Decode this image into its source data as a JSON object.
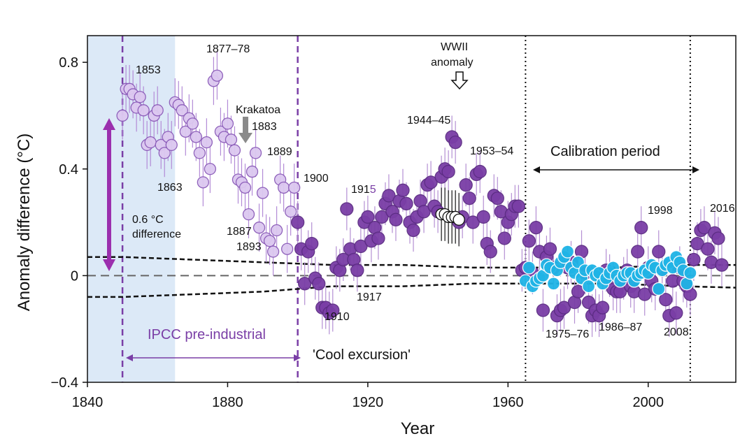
{
  "chart_data": {
    "type": "scatter",
    "xlabel": "Year",
    "ylabel": "Anomaly difference (°C)",
    "xlim": [
      1840,
      2025
    ],
    "ylim": [
      -0.4,
      0.9
    ],
    "x_ticks": [
      1840,
      1880,
      1920,
      1960,
      2000
    ],
    "y_ticks": [
      {
        "value": 0.8,
        "label": "0.8"
      },
      {
        "value": 0.4,
        "label": "0.4"
      },
      {
        "value": 0,
        "label": "0"
      },
      {
        "value": -0.4,
        "label": "−0.4"
      }
    ],
    "regions": {
      "shade": {
        "from": 1840,
        "to": 1865
      },
      "ipcc_lines": [
        1850,
        1900
      ],
      "calibration_lines": [
        1965,
        2012
      ]
    },
    "colors": {
      "light_purple": "#dcc8f0",
      "light_purple_edge": "#8a5ab8",
      "dark_purple": "#7a3ea6",
      "dark_purple_edge": "#5b2c82",
      "cyan": "#1fb4e6",
      "arrow_purple": "#9b2fae",
      "shade": "#dce9f7",
      "text_purple": "#7a3ea6"
    },
    "series": [
      {
        "name": "pre-1900",
        "style": "light_purple",
        "points": [
          [
            1850,
            0.6
          ],
          [
            1851,
            0.7
          ],
          [
            1852,
            0.7
          ],
          [
            1853,
            0.68
          ],
          [
            1854,
            0.63
          ],
          [
            1855,
            0.67
          ],
          [
            1856,
            0.62
          ],
          [
            1857,
            0.49
          ],
          [
            1858,
            0.5
          ],
          [
            1859,
            0.6
          ],
          [
            1860,
            0.62
          ],
          [
            1861,
            0.49
          ],
          [
            1862,
            0.46
          ],
          [
            1863,
            0.52
          ],
          [
            1864,
            0.49
          ],
          [
            1865,
            0.65
          ],
          [
            1866,
            0.64
          ],
          [
            1867,
            0.62
          ],
          [
            1868,
            0.54
          ],
          [
            1869,
            0.59
          ],
          [
            1870,
            0.57
          ],
          [
            1871,
            0.52
          ],
          [
            1872,
            0.46
          ],
          [
            1873,
            0.35
          ],
          [
            1874,
            0.5
          ],
          [
            1875,
            0.4
          ],
          [
            1876,
            0.73
          ],
          [
            1877,
            0.75
          ],
          [
            1878,
            0.54
          ],
          [
            1879,
            0.52
          ],
          [
            1880,
            0.57
          ],
          [
            1881,
            0.51
          ],
          [
            1882,
            0.47
          ],
          [
            1883,
            0.36
          ],
          [
            1884,
            0.35
          ],
          [
            1885,
            0.33
          ],
          [
            1886,
            0.23
          ],
          [
            1887,
            0.39
          ],
          [
            1888,
            0.46
          ],
          [
            1889,
            0.18
          ],
          [
            1890,
            0.31
          ],
          [
            1891,
            0.14
          ],
          [
            1892,
            0.13
          ],
          [
            1893,
            0.09
          ],
          [
            1894,
            0.17
          ],
          [
            1895,
            0.36
          ],
          [
            1896,
            0.33
          ],
          [
            1897,
            0.1
          ],
          [
            1898,
            0.24
          ],
          [
            1899,
            0.33
          ]
        ]
      },
      {
        "name": "1900-1964",
        "style": "dark_purple",
        "points": [
          [
            1900,
            0.2
          ],
          [
            1901,
            0.1
          ],
          [
            1902,
            -0.03
          ],
          [
            1903,
            0.09
          ],
          [
            1904,
            0.12
          ],
          [
            1905,
            -0.01
          ],
          [
            1906,
            -0.03
          ],
          [
            1907,
            -0.12
          ],
          [
            1908,
            -0.12
          ],
          [
            1909,
            -0.14
          ],
          [
            1910,
            -0.13
          ],
          [
            1911,
            0.03
          ],
          [
            1912,
            0.02
          ],
          [
            1913,
            0.06
          ],
          [
            1914,
            0.25
          ],
          [
            1915,
            0.1
          ],
          [
            1916,
            0.06
          ],
          [
            1917,
            0.02
          ],
          [
            1918,
            0.11
          ],
          [
            1919,
            0.2
          ],
          [
            1920,
            0.22
          ],
          [
            1921,
            0.13
          ],
          [
            1922,
            0.18
          ],
          [
            1923,
            0.14
          ],
          [
            1924,
            0.22
          ],
          [
            1925,
            0.27
          ],
          [
            1926,
            0.3
          ],
          [
            1927,
            0.24
          ],
          [
            1928,
            0.21
          ],
          [
            1929,
            0.28
          ],
          [
            1930,
            0.32
          ],
          [
            1931,
            0.27
          ],
          [
            1932,
            0.2
          ],
          [
            1933,
            0.17
          ],
          [
            1934,
            0.22
          ],
          [
            1935,
            0.28
          ],
          [
            1936,
            0.24
          ],
          [
            1937,
            0.34
          ],
          [
            1938,
            0.35
          ],
          [
            1939,
            0.26
          ],
          [
            1940,
            0.24
          ],
          [
            1941,
            0.37
          ],
          [
            1942,
            0.4
          ],
          [
            1943,
            0.39
          ],
          [
            1944,
            0.52
          ],
          [
            1945,
            0.5
          ],
          [
            1946,
            0.2
          ],
          [
            1947,
            0.22
          ],
          [
            1948,
            0.34
          ],
          [
            1949,
            0.29
          ],
          [
            1950,
            0.2
          ],
          [
            1951,
            0.38
          ],
          [
            1952,
            0.39
          ],
          [
            1953,
            0.22
          ],
          [
            1954,
            0.12
          ],
          [
            1955,
            0.09
          ],
          [
            1956,
            0.3
          ],
          [
            1957,
            0.29
          ],
          [
            1958,
            0.24
          ],
          [
            1959,
            0.14
          ],
          [
            1960,
            0.2
          ],
          [
            1961,
            0.23
          ],
          [
            1962,
            0.26
          ],
          [
            1963,
            0.26
          ],
          [
            1964,
            0.02
          ]
        ]
      },
      {
        "name": "1944-45 open",
        "style": "open_black",
        "points": [
          [
            1941,
            0.23
          ],
          [
            1942,
            0.23
          ],
          [
            1943,
            0.22
          ],
          [
            1944,
            0.22
          ],
          [
            1945,
            0.22
          ],
          [
            1946,
            0.21
          ]
        ]
      },
      {
        "name": "1965-2012 purple",
        "style": "dark_purple",
        "points": [
          [
            1965,
            0.03
          ],
          [
            1966,
            0.13
          ],
          [
            1967,
            0.01
          ],
          [
            1968,
            0.18
          ],
          [
            1969,
            0.09
          ],
          [
            1970,
            -0.13
          ],
          [
            1971,
            0.07
          ],
          [
            1972,
            0.1
          ],
          [
            1973,
            0.03
          ],
          [
            1974,
            -0.15
          ],
          [
            1975,
            -0.13
          ],
          [
            1976,
            -0.12
          ],
          [
            1977,
            0.03
          ],
          [
            1978,
            0.05
          ],
          [
            1979,
            -0.1
          ],
          [
            1980,
            -0.06
          ],
          [
            1981,
            0.09
          ],
          [
            1982,
            0.01
          ],
          [
            1983,
            -0.1
          ],
          [
            1984,
            -0.15
          ],
          [
            1985,
            -0.13
          ],
          [
            1986,
            -0.15
          ],
          [
            1987,
            -0.12
          ],
          [
            1988,
            0.02
          ],
          [
            1989,
            0.0
          ],
          [
            1990,
            -0.05
          ],
          [
            1991,
            -0.06
          ],
          [
            1992,
            -0.06
          ],
          [
            1993,
            -0.01
          ],
          [
            1994,
            0.02
          ],
          [
            1995,
            -0.04
          ],
          [
            1996,
            -0.06
          ],
          [
            1997,
            0.09
          ],
          [
            1998,
            0.18
          ],
          [
            1999,
            -0.07
          ],
          [
            2000,
            0.03
          ],
          [
            2001,
            -0.02
          ],
          [
            2002,
            -0.05
          ],
          [
            2003,
            0.09
          ],
          [
            2004,
            0.02
          ],
          [
            2005,
            -0.09
          ],
          [
            2006,
            -0.15
          ],
          [
            2007,
            -0.02
          ],
          [
            2008,
            -0.14
          ],
          [
            2009,
            0.03
          ],
          [
            2010,
            -0.02
          ],
          [
            2011,
            -0.04
          ],
          [
            2012,
            -0.07
          ]
        ]
      },
      {
        "name": "1965-2012 cyan",
        "style": "cyan",
        "points": [
          [
            1965,
            -0.02
          ],
          [
            1966,
            0.03
          ],
          [
            1967,
            -0.04
          ],
          [
            1968,
            -0.02
          ],
          [
            1969,
            -0.01
          ],
          [
            1970,
            0.0
          ],
          [
            1971,
            0.04
          ],
          [
            1972,
            0.03
          ],
          [
            1973,
            -0.03
          ],
          [
            1974,
            0.02
          ],
          [
            1975,
            0.05
          ],
          [
            1976,
            0.07
          ],
          [
            1977,
            0.09
          ],
          [
            1978,
            0.03
          ],
          [
            1979,
            0.01
          ],
          [
            1980,
            0.05
          ],
          [
            1981,
            -0.01
          ],
          [
            1982,
            0.02
          ],
          [
            1983,
            -0.04
          ],
          [
            1984,
            0.02
          ],
          [
            1985,
            0.0
          ],
          [
            1986,
            0.01
          ],
          [
            1987,
            -0.03
          ],
          [
            1988,
            -0.01
          ],
          [
            1989,
            0.01
          ],
          [
            1990,
            0.03
          ],
          [
            1991,
            0.0
          ],
          [
            1992,
            -0.02
          ],
          [
            1993,
            0.0
          ],
          [
            1994,
            0.01
          ],
          [
            1995,
            0.01
          ],
          [
            1996,
            -0.02
          ],
          [
            1997,
            0.0
          ],
          [
            1998,
            0.01
          ],
          [
            1999,
            0.02
          ],
          [
            2000,
            0.01
          ],
          [
            2001,
            0.04
          ],
          [
            2002,
            0.03
          ],
          [
            2003,
            -0.05
          ],
          [
            2004,
            0.02
          ],
          [
            2005,
            0.04
          ],
          [
            2006,
            0.05
          ],
          [
            2007,
            0.03
          ],
          [
            2008,
            0.07
          ],
          [
            2009,
            0.05
          ],
          [
            2010,
            0.02
          ],
          [
            2011,
            -0.03
          ],
          [
            2012,
            0.01
          ]
        ]
      },
      {
        "name": "post-2012",
        "style": "dark_purple",
        "points": [
          [
            2013,
            0.06
          ],
          [
            2014,
            0.12
          ],
          [
            2015,
            0.17
          ],
          [
            2016,
            0.18
          ],
          [
            2017,
            0.1
          ],
          [
            2018,
            0.05
          ],
          [
            2019,
            0.16
          ],
          [
            2020,
            0.14
          ],
          [
            2021,
            0.04
          ]
        ]
      }
    ],
    "upper_band": [
      [
        1840,
        0.07
      ],
      [
        1850,
        0.07
      ],
      [
        1870,
        0.06
      ],
      [
        1890,
        0.05
      ],
      [
        1910,
        0.04
      ],
      [
        1930,
        0.04
      ],
      [
        1950,
        0.03
      ],
      [
        1970,
        0.03
      ],
      [
        1990,
        0.03
      ],
      [
        2010,
        0.04
      ],
      [
        2025,
        0.04
      ]
    ],
    "lower_band": [
      [
        1840,
        -0.08
      ],
      [
        1850,
        -0.08
      ],
      [
        1870,
        -0.07
      ],
      [
        1890,
        -0.06
      ],
      [
        1910,
        -0.04
      ],
      [
        1930,
        -0.04
      ],
      [
        1950,
        -0.03
      ],
      [
        1970,
        -0.03
      ],
      [
        1990,
        -0.03
      ],
      [
        2010,
        -0.04
      ],
      [
        2025,
        -0.045
      ]
    ],
    "annotations": {
      "a1853": "1853",
      "a1863": "1863",
      "a187778": "1877–78",
      "krakatoa": "Krakatoa",
      "a1883": "1883",
      "a1889": "1889",
      "a1887": "1887",
      "a1893": "1893",
      "a1900": "1900",
      "a1910": "1910",
      "a1915_prefix": "191",
      "a1915_suffix": "5",
      "a1917": "1917",
      "wwii_line1": "WWII",
      "wwii_line2": "anomaly",
      "a194445": "1944–45",
      "a195354": "1953–54",
      "calibration": "Calibration period",
      "a1998": "1998",
      "a2016": "2016",
      "a197576": "1975–76",
      "a198687": "1986–87",
      "a2008": "2008",
      "diff_line1": "0.6 °C",
      "diff_line2": "difference",
      "ipcc": "IPCC pre-industrial",
      "cool": "'Cool excursion'"
    }
  }
}
